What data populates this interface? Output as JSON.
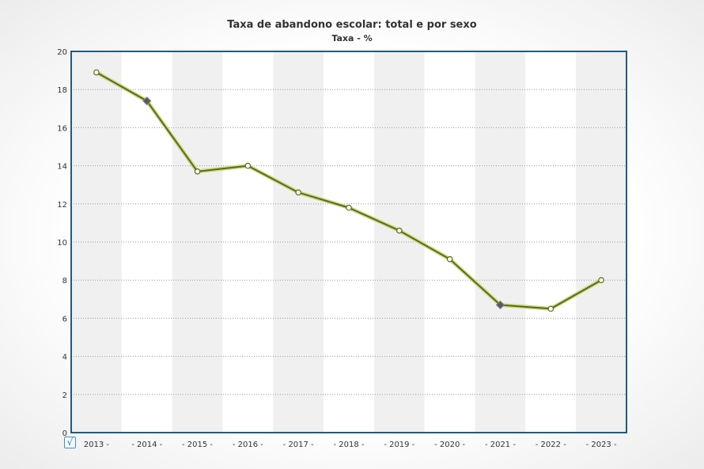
{
  "header": {
    "title": "Taxa de abandono escolar: total e por sexo",
    "subtitle": "Taxa - %"
  },
  "controls": {
    "checkbox_state": "checked",
    "checkbox_glyph": "√"
  },
  "chart_data": {
    "type": "line",
    "title": "Taxa de abandono escolar: total e por sexo",
    "subtitle": "Taxa - %",
    "xlabel": "",
    "ylabel": "",
    "categories": [
      "2013",
      "2014",
      "2015",
      "2016",
      "2017",
      "2018",
      "2019",
      "2020",
      "2021",
      "2022",
      "2023"
    ],
    "category_labels": [
      "2013 -",
      "- 2014 -",
      "- 2015 -",
      "- 2016 -",
      "- 2017 -",
      "- 2018 -",
      "- 2019 -",
      "- 2020 -",
      "- 2021 -",
      "- 2022 -",
      "- 2023 -"
    ],
    "series": [
      {
        "values": [
          18.9,
          17.4,
          13.7,
          14.0,
          12.6,
          11.8,
          10.6,
          9.1,
          6.7,
          6.5,
          8.0
        ],
        "highlighted": [
          false,
          true,
          false,
          false,
          false,
          false,
          false,
          false,
          true,
          false,
          false
        ]
      }
    ],
    "ylim": [
      0,
      20
    ],
    "yticks": [
      0,
      2,
      4,
      6,
      8,
      10,
      12,
      14,
      16,
      18,
      20
    ],
    "grid": true,
    "legend": "none",
    "colors": {
      "line": "#5c6b12",
      "line_glow": "#c9d98a",
      "marker_fill": "#ffffff",
      "highlight_marker": "#5a5a5a",
      "axis": "#1f5a82",
      "band_light": "#ffffff",
      "band_dark": "#f0f0f0"
    }
  }
}
